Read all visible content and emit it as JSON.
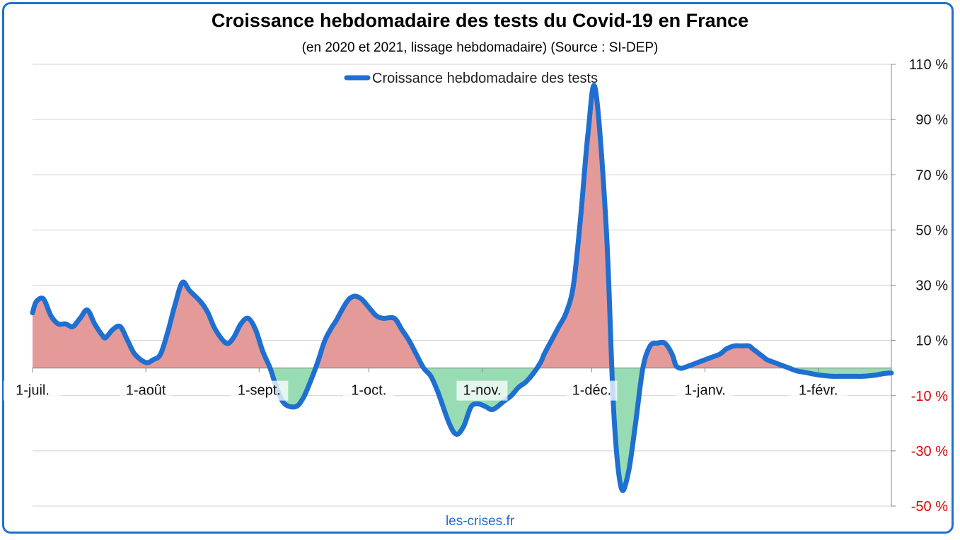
{
  "chart_data": {
    "type": "area",
    "title": "Croissance hebdomadaire des tests du Covid-19 en France",
    "subtitle": "(en 2020 et 2021, lissage hebdomadaire) (Source : SI-DEP)",
    "source_note": "les-crises.fr",
    "xlabel": "",
    "ylabel": "",
    "x_tick_labels": [
      "1-juil.",
      "1-août",
      "1-sept.",
      "1-oct.",
      "1-nov.",
      "1-déc.",
      "1-janv.",
      "1-févr."
    ],
    "y_tick_labels": [
      "110 %",
      "90 %",
      "70 %",
      "50 %",
      "30 %",
      "10 %",
      "-10 %",
      "-30 %",
      "-50 %"
    ],
    "y_ticks": [
      110,
      90,
      70,
      50,
      30,
      10,
      -10,
      -30,
      -50
    ],
    "ylim": [
      -50,
      110
    ],
    "x_range_days": [
      0,
      235
    ],
    "y_axis_side": "right",
    "grid": true,
    "legend": "top-center",
    "colors": {
      "line": "#1f6fd1",
      "positive_fill": "#e59a9a",
      "negative_fill": "#98dcb4",
      "negative_tick_label": "#e00000",
      "grid": "#d0d0d0",
      "frame": "#1f6fd1"
    },
    "series": [
      {
        "name": "Croissance hebdomadaire des tests",
        "x": [
          0,
          1,
          3,
          5,
          7,
          9,
          11,
          13,
          15,
          17,
          19,
          20,
          22,
          24,
          26,
          28,
          31,
          33,
          35,
          37,
          39,
          41,
          43,
          46,
          48,
          50,
          53,
          55,
          57,
          59,
          61,
          63,
          65,
          67,
          69,
          72,
          74,
          76,
          78,
          80,
          82,
          83,
          86,
          88,
          90,
          92,
          94,
          96,
          99,
          101,
          103,
          105,
          107,
          109,
          111,
          114,
          116,
          118,
          120,
          122,
          124,
          126,
          129,
          131,
          133,
          135,
          137,
          139,
          140,
          142,
          144,
          146,
          148,
          150,
          152,
          154,
          157,
          159,
          161,
          163,
          165,
          167,
          169,
          171,
          173,
          175,
          176,
          177,
          178,
          180,
          182,
          184,
          186,
          188,
          189,
          190,
          192,
          194,
          196,
          197,
          198,
          199,
          200,
          201,
          203,
          205,
          207,
          209,
          211,
          213,
          215,
          217,
          219,
          221,
          223,
          225,
          227,
          229,
          231,
          233,
          235
        ],
        "values": [
          20,
          24,
          25,
          19,
          16,
          16,
          15,
          18,
          21,
          16,
          12,
          11,
          14,
          15,
          10,
          5,
          2,
          3,
          5,
          13,
          23,
          31,
          28,
          24,
          20,
          14,
          9,
          11,
          16,
          18,
          14,
          6,
          0,
          -8,
          -13,
          -14,
          -11,
          -5,
          2,
          10,
          15,
          17,
          24,
          26,
          25,
          22,
          19,
          18,
          18,
          14,
          10,
          5,
          0,
          -3,
          -9,
          -20,
          -24,
          -21,
          -14,
          -13,
          -14,
          -15,
          -12,
          -10,
          -7,
          -5,
          -2,
          2,
          5,
          10,
          15,
          20,
          30,
          55,
          85,
          101,
          50,
          -15,
          -43,
          -38,
          -20,
          0,
          8,
          9,
          9,
          5,
          1,
          0,
          0,
          1,
          2,
          3,
          4,
          5,
          6,
          7,
          8,
          8,
          8,
          7,
          6,
          5,
          4,
          3,
          2,
          1,
          0,
          -1,
          -1.5,
          -2,
          -2.5,
          -2.8,
          -3,
          -3,
          -3,
          -3,
          -3,
          -2.8,
          -2.5,
          -2,
          -1.8
        ]
      }
    ]
  }
}
